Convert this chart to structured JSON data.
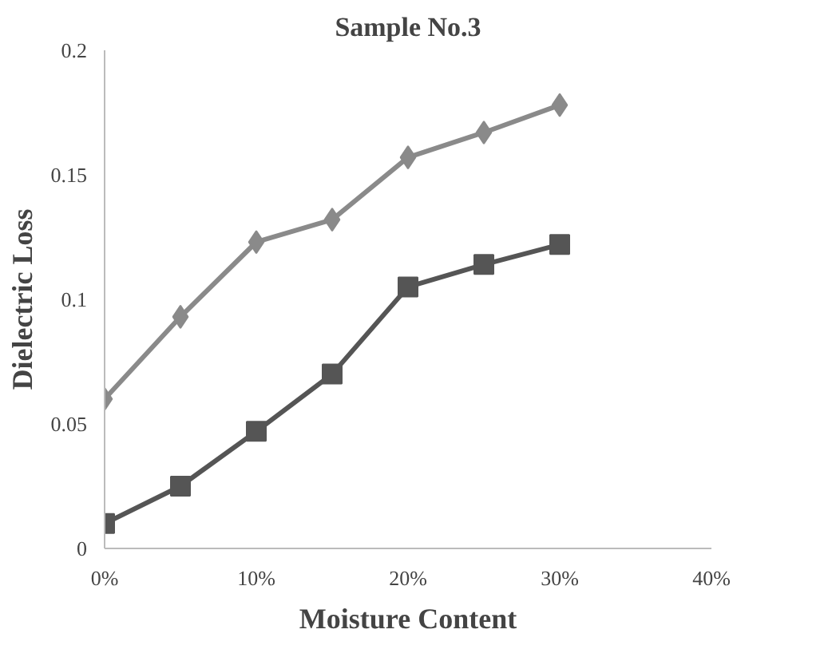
{
  "chart_data": {
    "type": "line",
    "title": "Sample No.3",
    "xlabel": "Moisture Content",
    "ylabel": "Dielectric Loss",
    "x": [
      0,
      5,
      10,
      15,
      20,
      25,
      30
    ],
    "series": [
      {
        "color": "#8a8a8a",
        "marker": "diamond",
        "values": [
          0.06,
          0.093,
          0.123,
          0.132,
          0.157,
          0.167,
          0.178
        ]
      },
      {
        "color": "#555555",
        "marker": "square",
        "values": [
          0.01,
          0.025,
          0.047,
          0.07,
          0.105,
          0.114,
          0.122
        ]
      }
    ],
    "xlim": [
      0,
      40
    ],
    "xticks": [
      {
        "value": 0,
        "label": "0%"
      },
      {
        "value": 10,
        "label": "10%"
      },
      {
        "value": 20,
        "label": "20%"
      },
      {
        "value": 30,
        "label": "30%"
      },
      {
        "value": 40,
        "label": "40%"
      }
    ],
    "ylim": [
      0,
      0.2
    ],
    "yticks": [
      {
        "value": 0,
        "label": "0"
      },
      {
        "value": 0.05,
        "label": "0.05"
      },
      {
        "value": 0.1,
        "label": "0.1"
      },
      {
        "value": 0.15,
        "label": "0.15"
      },
      {
        "value": 0.2,
        "label": "0.2"
      }
    ],
    "grid": false,
    "line_style": "solid"
  }
}
